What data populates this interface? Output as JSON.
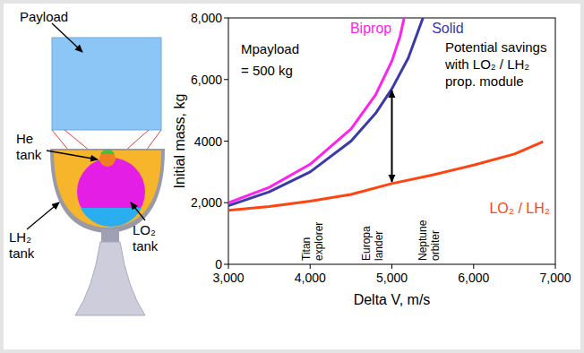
{
  "chart_data": {
    "type": "line",
    "x_label": "Delta V, m/s",
    "y_label": "Initial mass, kg",
    "xlim": [
      3000,
      7000
    ],
    "ylim": [
      0,
      8000
    ],
    "xticks": [
      {
        "value": 3000,
        "label": "3,000"
      },
      {
        "value": 4000,
        "label": "4,000"
      },
      {
        "value": 5000,
        "label": "5,000"
      },
      {
        "value": 6000,
        "label": "6,000"
      },
      {
        "value": 7000,
        "label": "7,000"
      }
    ],
    "yticks": [
      0,
      {
        "value": 2000,
        "label": "2,000"
      },
      4000,
      {
        "value": 6000,
        "label": "6,000"
      },
      {
        "value": 8000,
        "label": "8,000"
      }
    ],
    "grid": false,
    "series": [
      {
        "name": "Biprop",
        "color": "#ff22ee",
        "x": [
          3000,
          3500,
          4000,
          4500,
          4800,
          5000,
          5100,
          5150
        ],
        "values": [
          2000,
          2500,
          3250,
          4400,
          5500,
          6600,
          7400,
          8000
        ]
      },
      {
        "name": "Solid",
        "color": "#3a3aa8",
        "x": [
          3000,
          3500,
          4000,
          4500,
          4800,
          5000,
          5200,
          5380
        ],
        "values": [
          1900,
          2350,
          3000,
          4000,
          4900,
          5700,
          6700,
          8000
        ]
      },
      {
        "name": "LO₂ / LH₂",
        "color": "#ff4411",
        "x": [
          3000,
          3500,
          4000,
          4500,
          5000,
          5500,
          6000,
          6500,
          6850
        ],
        "values": [
          1750,
          1880,
          2050,
          2270,
          2620,
          2900,
          3220,
          3580,
          3980
        ]
      }
    ],
    "annotations": [
      {
        "text": "Mpayload = 500 kg"
      },
      {
        "text": "Potential savings with LO₂ / LH₂ prop. module"
      }
    ],
    "missions": [
      {
        "label": "Titan explorer",
        "x": 4030
      },
      {
        "label": "Europa lander",
        "x": 4760
      },
      {
        "label": "Neptune orbiter",
        "x": 5450
      }
    ],
    "savings_arrow": {
      "x": 5000,
      "from": 5700,
      "to": 2620
    }
  },
  "diagram": {
    "parts": [
      {
        "label": "Payload"
      },
      {
        "label": "He tank"
      },
      {
        "label": "LH₂ tank"
      },
      {
        "label": "LO₂ tank"
      }
    ]
  }
}
